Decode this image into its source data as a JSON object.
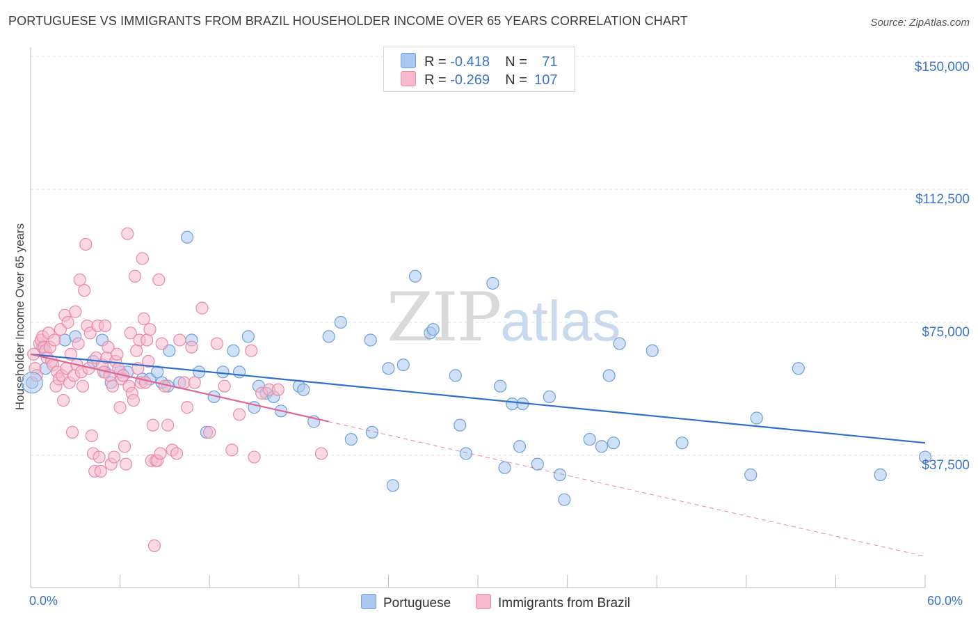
{
  "title": "PORTUGUESE VS IMMIGRANTS FROM BRAZIL HOUSEHOLDER INCOME OVER 65 YEARS CORRELATION CHART",
  "source": "Source: ZipAtlas.com",
  "watermark": {
    "zip": "ZIP",
    "atlas": "atlas"
  },
  "legend": {
    "r_label": "R =",
    "n_label": "N =",
    "rows": [
      {
        "r": "-0.418",
        "n": "71"
      },
      {
        "r": "-0.269",
        "n": "107"
      }
    ]
  },
  "colors": {
    "blue_fill": "#aac8f0",
    "blue_stroke": "#6f9fd8",
    "blue_line": "#2f6fcc",
    "pink_fill": "#f6b9cd",
    "pink_stroke": "#e88aa9",
    "pink_line": "#e06592",
    "axis_label": "#3b73c8",
    "grid": "#dcdcdc"
  },
  "chart_data": {
    "type": "scatter",
    "title": "PORTUGUESE VS IMMIGRANTS FROM BRAZIL HOUSEHOLDER INCOME OVER 65 YEARS CORRELATION CHART",
    "xlabel": "",
    "ylabel": "Householder Income Over 65 years",
    "xlim": [
      0,
      60
    ],
    "ylim": [
      0,
      155000
    ],
    "x_tick_labels": [
      "0.0%",
      "60.0%"
    ],
    "y_ticks": [
      37500,
      75000,
      112500,
      150000
    ],
    "y_tick_labels": [
      "$37,500",
      "$75,000",
      "$112,500",
      "$150,000"
    ],
    "grid": true,
    "legend_position": "top-center",
    "series": [
      {
        "name": "Portuguese",
        "trend": {
          "x": [
            0,
            60
          ],
          "y": [
            66000,
            41000
          ],
          "dashed_to": null
        },
        "points": [
          [
            0.1,
            58000
          ],
          [
            0.8,
            68000
          ],
          [
            1.0,
            62000
          ],
          [
            2.3,
            70000
          ],
          [
            3.0,
            71000
          ],
          [
            4.2,
            64000
          ],
          [
            4.8,
            70000
          ],
          [
            5.0,
            61000
          ],
          [
            5.4,
            58000
          ],
          [
            6.0,
            61000
          ],
          [
            6.5,
            61000
          ],
          [
            7.5,
            59000
          ],
          [
            8.0,
            59000
          ],
          [
            8.5,
            61000
          ],
          [
            8.8,
            58000
          ],
          [
            9.2,
            57000
          ],
          [
            9.3,
            67000
          ],
          [
            10.0,
            58000
          ],
          [
            10.5,
            99000
          ],
          [
            10.8,
            70000
          ],
          [
            11.3,
            61000
          ],
          [
            11.8,
            44000
          ],
          [
            12.3,
            54000
          ],
          [
            12.9,
            61000
          ],
          [
            13.6,
            67000
          ],
          [
            14.0,
            61000
          ],
          [
            14.6,
            71000
          ],
          [
            15.0,
            51000
          ],
          [
            15.3,
            57000
          ],
          [
            15.8,
            55000
          ],
          [
            16.3,
            54000
          ],
          [
            16.8,
            50000
          ],
          [
            18.0,
            57000
          ],
          [
            18.3,
            56000
          ],
          [
            19.0,
            47000
          ],
          [
            20.0,
            71000
          ],
          [
            20.8,
            75000
          ],
          [
            21.5,
            42000
          ],
          [
            22.8,
            70000
          ],
          [
            22.9,
            44000
          ],
          [
            24.0,
            62000
          ],
          [
            24.3,
            29000
          ],
          [
            25.0,
            63000
          ],
          [
            25.8,
            88000
          ],
          [
            26.8,
            72000
          ],
          [
            27.0,
            73000
          ],
          [
            28.5,
            60000
          ],
          [
            28.8,
            46000
          ],
          [
            29.2,
            38000
          ],
          [
            31.0,
            86000
          ],
          [
            31.5,
            57000
          ],
          [
            31.8,
            34000
          ],
          [
            32.3,
            52000
          ],
          [
            32.8,
            40000
          ],
          [
            33.0,
            52000
          ],
          [
            34.0,
            35000
          ],
          [
            34.8,
            54000
          ],
          [
            35.5,
            32000
          ],
          [
            35.8,
            25000
          ],
          [
            37.5,
            42000
          ],
          [
            38.3,
            40000
          ],
          [
            38.8,
            60000
          ],
          [
            39.1,
            41000
          ],
          [
            39.5,
            69000
          ],
          [
            41.7,
            67000
          ],
          [
            43.7,
            41000
          ],
          [
            48.3,
            32000
          ],
          [
            48.7,
            48000
          ],
          [
            51.5,
            62000
          ],
          [
            60.0,
            37000
          ],
          [
            57.0,
            32000
          ]
        ]
      },
      {
        "name": "Immigrants from Brazil",
        "trend": {
          "x": [
            0,
            20
          ],
          "y": [
            66000,
            47000
          ],
          "dashed_to": {
            "x": 60,
            "y": 9000
          }
        },
        "points": [
          [
            0.2,
            66000
          ],
          [
            0.3,
            62000
          ],
          [
            0.4,
            60000
          ],
          [
            0.6,
            69000
          ],
          [
            0.7,
            70000
          ],
          [
            0.8,
            71000
          ],
          [
            0.9,
            68000
          ],
          [
            1.0,
            67000
          ],
          [
            1.1,
            65000
          ],
          [
            1.2,
            72000
          ],
          [
            1.3,
            68000
          ],
          [
            1.4,
            64000
          ],
          [
            1.5,
            63000
          ],
          [
            1.6,
            70000
          ],
          [
            1.7,
            57000
          ],
          [
            1.8,
            61000
          ],
          [
            1.9,
            59000
          ],
          [
            2.0,
            73000
          ],
          [
            2.1,
            60000
          ],
          [
            2.2,
            53000
          ],
          [
            2.3,
            77000
          ],
          [
            2.4,
            62000
          ],
          [
            2.5,
            75000
          ],
          [
            2.6,
            58000
          ],
          [
            2.7,
            66000
          ],
          [
            2.8,
            44000
          ],
          [
            2.9,
            60000
          ],
          [
            3.0,
            78000
          ],
          [
            3.1,
            63000
          ],
          [
            3.2,
            69000
          ],
          [
            3.3,
            87000
          ],
          [
            3.4,
            61000
          ],
          [
            3.5,
            57000
          ],
          [
            3.6,
            84000
          ],
          [
            3.7,
            97000
          ],
          [
            3.8,
            74000
          ],
          [
            3.9,
            62000
          ],
          [
            4.0,
            72000
          ],
          [
            4.1,
            43000
          ],
          [
            4.2,
            38000
          ],
          [
            4.3,
            33000
          ],
          [
            4.4,
            65000
          ],
          [
            4.5,
            74000
          ],
          [
            4.6,
            37000
          ],
          [
            4.7,
            33000
          ],
          [
            4.8,
            63000
          ],
          [
            4.9,
            61000
          ],
          [
            5.0,
            74000
          ],
          [
            5.1,
            65000
          ],
          [
            5.2,
            68000
          ],
          [
            5.3,
            60000
          ],
          [
            5.4,
            35000
          ],
          [
            5.5,
            57000
          ],
          [
            5.6,
            37000
          ],
          [
            5.7,
            64000
          ],
          [
            5.8,
            66000
          ],
          [
            5.9,
            62000
          ],
          [
            6.0,
            51000
          ],
          [
            6.1,
            59000
          ],
          [
            6.2,
            60000
          ],
          [
            6.3,
            40000
          ],
          [
            6.4,
            35000
          ],
          [
            6.5,
            100000
          ],
          [
            6.6,
            57000
          ],
          [
            6.7,
            72000
          ],
          [
            6.8,
            55000
          ],
          [
            6.9,
            53000
          ],
          [
            7.0,
            88000
          ],
          [
            7.1,
            67000
          ],
          [
            7.2,
            62000
          ],
          [
            7.3,
            70000
          ],
          [
            7.4,
            58000
          ],
          [
            7.5,
            93000
          ],
          [
            7.6,
            76000
          ],
          [
            7.7,
            58000
          ],
          [
            7.8,
            70000
          ],
          [
            7.9,
            64000
          ],
          [
            8.0,
            73000
          ],
          [
            8.1,
            36000
          ],
          [
            8.2,
            46000
          ],
          [
            8.3,
            12000
          ],
          [
            8.4,
            36000
          ],
          [
            8.5,
            36000
          ],
          [
            8.6,
            87000
          ],
          [
            8.7,
            38000
          ],
          [
            8.8,
            69000
          ],
          [
            9.0,
            57000
          ],
          [
            9.2,
            46000
          ],
          [
            9.5,
            39000
          ],
          [
            9.8,
            38000
          ],
          [
            10.0,
            70000
          ],
          [
            10.3,
            58000
          ],
          [
            10.5,
            51000
          ],
          [
            10.8,
            68000
          ],
          [
            11.0,
            58000
          ],
          [
            11.5,
            79000
          ],
          [
            12.0,
            44000
          ],
          [
            12.5,
            69000
          ],
          [
            13.0,
            57000
          ],
          [
            13.5,
            39000
          ],
          [
            14.0,
            49000
          ],
          [
            15.0,
            37000
          ],
          [
            15.5,
            55000
          ],
          [
            16.0,
            56000
          ],
          [
            16.6,
            56000
          ],
          [
            19.5,
            38000
          ],
          [
            14.8,
            67000
          ]
        ]
      }
    ]
  }
}
